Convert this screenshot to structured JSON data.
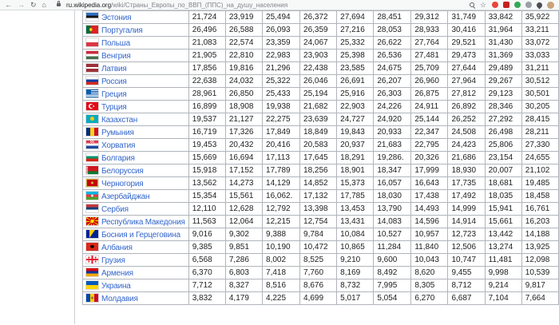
{
  "browser": {
    "back_icon": "←",
    "forward_icon": "→",
    "reload_icon": "↻",
    "home_icon": "⌂",
    "bookmark_icon": "☆",
    "url": {
      "host": "ru.wikipedia.org",
      "path": "/wiki/Страны_Европы_по_ВВП_(ППС)_на_душу_населения"
    },
    "extensions": [
      {
        "name": "extension-badge-red-circle",
        "shape": "circle",
        "color": "#e8453c"
      },
      {
        "name": "extension-badge-stop-octagon",
        "shape": "octagon",
        "color": "#c5221f"
      },
      {
        "name": "extension-badge-green-circle",
        "shape": "circle",
        "color": "#34a853"
      },
      {
        "name": "extension-badge-gray-circle",
        "shape": "circle",
        "color": "#9aa0a6"
      },
      {
        "name": "extensions-pin-icon",
        "shape": "pin",
        "color": "#4a4d52"
      },
      {
        "name": "profile-avatar",
        "shape": "avatar",
        "color": "#caa27b"
      }
    ]
  },
  "page": {
    "link_color": "#3366cc",
    "table_border_color": "#b0b5ba",
    "table": {
      "rows": [
        {
          "country": "Эстония",
          "flag": "ee",
          "values": [
            "21,724",
            "23,919",
            "25,494",
            "26,372",
            "27,694",
            "28,451",
            "29,312",
            "31,749",
            "33,842",
            "35,922"
          ]
        },
        {
          "country": "Португалия",
          "flag": "pt",
          "values": [
            "26,496",
            "26,588",
            "26,093",
            "26,359",
            "27,216",
            "28,053",
            "28,933",
            "30,416",
            "31,964",
            "33,211"
          ]
        },
        {
          "country": "Польша",
          "flag": "pl",
          "values": [
            "21,083",
            "22,574",
            "23,359",
            "24,067",
            "25,332",
            "26,622",
            "27,764",
            "29,521",
            "31,430",
            "33,072"
          ]
        },
        {
          "country": "Венгрия",
          "flag": "hu",
          "values": [
            "21,905",
            "22,810",
            "22,983",
            "23,903",
            "25,398",
            "26,536",
            "27,481",
            "29,473",
            "31,369",
            "33,033"
          ]
        },
        {
          "country": "Латвия",
          "flag": "lv",
          "values": [
            "17,856",
            "19,816",
            "21,296",
            "22,438",
            "23,585",
            "24,675",
            "25,709",
            "27,644",
            "29,489",
            "31,211"
          ]
        },
        {
          "country": "Россия",
          "flag": "ru",
          "values": [
            "22,638",
            "24,032",
            "25,322",
            "26,046",
            "26,691",
            "26,207",
            "26,960",
            "27,964",
            "29,267",
            "30,512"
          ]
        },
        {
          "country": "Греция",
          "flag": "gr",
          "values": [
            "28,961",
            "26,850",
            "25,433",
            "25,194",
            "25,916",
            "26,303",
            "26,875",
            "27,812",
            "29,123",
            "30,501"
          ]
        },
        {
          "country": "Турция",
          "flag": "tr",
          "values": [
            "16,899",
            "18,908",
            "19,938",
            "21,682",
            "22,903",
            "24,226",
            "24,911",
            "26,892",
            "28,346",
            "30,205"
          ]
        },
        {
          "country": "Казахстан",
          "flag": "kz",
          "values": [
            "19,537",
            "21,127",
            "22,275",
            "23,639",
            "24,727",
            "24,920",
            "25,144",
            "26,252",
            "27,292",
            "28,415"
          ]
        },
        {
          "country": "Румыния",
          "flag": "ro",
          "values": [
            "16,719",
            "17,326",
            "17,849",
            "18,849",
            "19,843",
            "20,933",
            "22,347",
            "24,508",
            "26,498",
            "28,211"
          ]
        },
        {
          "country": "Хорватия",
          "flag": "hr",
          "values": [
            "19,453",
            "20,432",
            "20,416",
            "20,583",
            "20,937",
            "21,683",
            "22,795",
            "24,423",
            "25,806",
            "27,330"
          ]
        },
        {
          "country": "Болгария",
          "flag": "bg",
          "values": [
            "15,669",
            "16,694",
            "17,113",
            "17,645",
            "18,291",
            "19,286.",
            "20,326",
            "21,686",
            "23,154",
            "24,655"
          ]
        },
        {
          "country": "Белоруссия",
          "flag": "by",
          "values": [
            "15,918",
            "17,152",
            "17,789",
            "18,256",
            "18,901",
            "18,347",
            "17,999",
            "18,930",
            "20,007",
            "21,102"
          ]
        },
        {
          "country": "Черногория",
          "flag": "me",
          "values": [
            "13,562",
            "14,273",
            "14,129",
            "14,852",
            "15,373",
            "16,057",
            "16,643",
            "17,735",
            "18,681",
            "19,485"
          ]
        },
        {
          "country": "Азербайджан",
          "flag": "az",
          "values": [
            "15,354",
            "15,561",
            "16,062.",
            "17,132",
            "17,785",
            "18,030",
            "17,438",
            "17,492",
            "18,035",
            "18,458"
          ]
        },
        {
          "country": "Сербия",
          "flag": "rs",
          "values": [
            "12,110",
            "12,628",
            "12,792",
            "13,398",
            "13,453",
            "13,790",
            "14,493",
            "14,999",
            "15,941",
            "16,761"
          ]
        },
        {
          "country": "Республика Македония",
          "flag": "mk",
          "values": [
            "11,563",
            "12,064",
            "12,215",
            "12,754",
            "13,431",
            "14,083",
            "14,596",
            "14,914",
            "15,661",
            "16,203"
          ]
        },
        {
          "country": "Босния и Герцеговина",
          "flag": "ba",
          "values": [
            "9,016",
            "9,302",
            "9,388",
            "9,784",
            "10,084",
            "10,527",
            "10,957",
            "12,723",
            "13,442",
            "14,188"
          ]
        },
        {
          "country": "Албания",
          "flag": "al",
          "values": [
            "9,385",
            "9,851",
            "10,190",
            "10,472",
            "10,865",
            "11,284",
            "11,840",
            "12,506",
            "13,274",
            "13,925"
          ]
        },
        {
          "country": "Грузия",
          "flag": "ge",
          "values": [
            "6,568",
            "7,286",
            "8,002",
            "8,525",
            "9,210",
            "9,600",
            "10,043",
            "10,747",
            "11,481",
            "12,098"
          ]
        },
        {
          "country": "Армения",
          "flag": "am",
          "values": [
            "6,370",
            "6,803",
            "7,418",
            "7,760",
            "8,169",
            "8,492",
            "8,620",
            "9,455",
            "9,998",
            "10,539"
          ]
        },
        {
          "country": "Украина",
          "flag": "ua",
          "values": [
            "7,712",
            "8,327",
            "8,516",
            "8,676",
            "8,732",
            "7,995",
            "8,305",
            "8,712",
            "9,214",
            "9,817"
          ]
        },
        {
          "country": "Молдавия",
          "flag": "md",
          "values": [
            "3,832",
            "4,179",
            "4,225",
            "4,699",
            "5,017",
            "5,054",
            "6,270",
            "6,687",
            "7,104",
            "7,664"
          ]
        }
      ]
    }
  }
}
